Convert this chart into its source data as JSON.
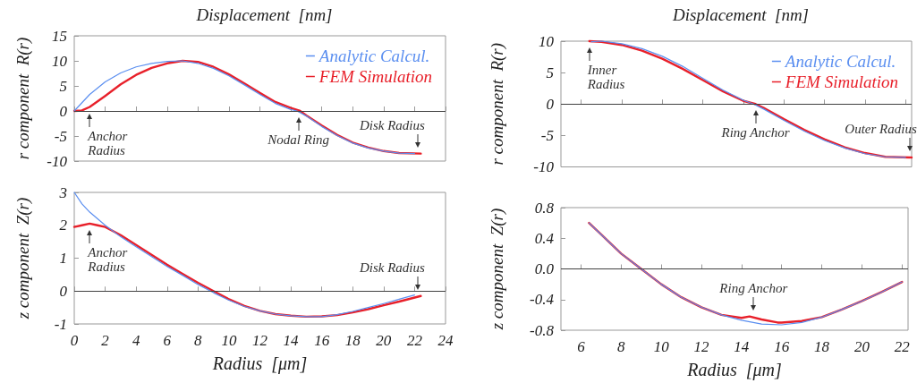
{
  "chart_data": [
    {
      "type": "line",
      "title": "Displacement  [nm]",
      "ylabel": "r component  R(r)",
      "xlim": [
        0,
        24
      ],
      "xticks": [
        0,
        2,
        4,
        6,
        8,
        10,
        12,
        14,
        16,
        18,
        20,
        22,
        24
      ],
      "ylim": [
        -10,
        15
      ],
      "yticks": [
        -10,
        -5,
        0,
        5,
        10,
        15
      ],
      "tick_labels": "y",
      "legend": "top right",
      "marker": "none",
      "line_style": "solid",
      "ref_lines": [
        {
          "axis": "y",
          "value": 0,
          "color": "#404040"
        }
      ],
      "annotations": [
        {
          "text": "Anchor Radius",
          "x": 1,
          "y": 0.8
        },
        {
          "text": "Nodal Ring",
          "x": 14.5,
          "y": 0
        },
        {
          "text": "Disk Radius",
          "x": 22.2,
          "y": -8.5
        }
      ],
      "series": [
        {
          "name": "Analytic Calcul.",
          "color": "#5b8ff0",
          "x": [
            0,
            1,
            2,
            3,
            4,
            5,
            6,
            7,
            8,
            9,
            10,
            11,
            12,
            13,
            14,
            14.4,
            15,
            16,
            17,
            18,
            19,
            20,
            21,
            22
          ],
          "values": [
            0,
            3.3,
            5.8,
            7.6,
            8.8,
            9.5,
            9.9,
            10,
            9.5,
            8.5,
            7,
            5.2,
            3.3,
            1.5,
            0.3,
            0,
            -1,
            -3.1,
            -4.9,
            -6.4,
            -7.4,
            -8,
            -8.4,
            -8.5
          ]
        },
        {
          "name": "FEM Simulation",
          "color": "#e8202a",
          "x": [
            0,
            0.5,
            1,
            2,
            3,
            4,
            5,
            6,
            7,
            8,
            9,
            10,
            11,
            12,
            13,
            14,
            14.6,
            15,
            16,
            17,
            18,
            19,
            20,
            21,
            22.4
          ],
          "values": [
            0,
            0.1,
            0.8,
            3,
            5.3,
            7.2,
            8.6,
            9.5,
            10,
            9.8,
            8.8,
            7.3,
            5.5,
            3.6,
            1.8,
            0.6,
            0,
            -0.9,
            -2.9,
            -4.8,
            -6.3,
            -7.3,
            -8,
            -8.4,
            -8.5
          ]
        }
      ]
    },
    {
      "type": "line",
      "title": "Displacement  [nm]",
      "ylabel": "r component  R(r)",
      "xlim": [
        5,
        22.3
      ],
      "xticks": [
        6,
        8,
        10,
        12,
        14,
        16,
        18,
        20,
        22
      ],
      "ylim": [
        -10,
        10
      ],
      "yticks": [
        -10,
        -5,
        0,
        5,
        10
      ],
      "tick_labels": "y",
      "legend": "top right",
      "marker": "none",
      "line_style": "solid",
      "ref_lines": [
        {
          "axis": "y",
          "value": 0,
          "color": "#404040"
        }
      ],
      "annotations": [
        {
          "text": "Inner Radius",
          "x": 6.4,
          "y": 10
        },
        {
          "text": "Ring Anchor",
          "x": 14.6,
          "y": 0
        },
        {
          "text": "Outer Radius",
          "x": 22.2,
          "y": -8.5
        }
      ],
      "series": [
        {
          "name": "Analytic Calcul.",
          "color": "#5b8ff0",
          "x": [
            6.5,
            7,
            8,
            9,
            10,
            11,
            12,
            13,
            14,
            14.5,
            15,
            16,
            17,
            18,
            19,
            20,
            21,
            22
          ],
          "values": [
            9.9,
            10,
            9.6,
            8.8,
            7.6,
            6,
            4.1,
            2.2,
            0.6,
            0,
            -0.8,
            -2.6,
            -4.3,
            -5.8,
            -7,
            -7.9,
            -8.4,
            -8.5
          ]
        },
        {
          "name": "FEM Simulation",
          "color": "#e8202a",
          "x": [
            6.4,
            7,
            8,
            9,
            10,
            11,
            12,
            13,
            14,
            14.6,
            15,
            16,
            17,
            18,
            19,
            20,
            21,
            22.3
          ],
          "values": [
            10,
            9.9,
            9.4,
            8.5,
            7.2,
            5.6,
            3.8,
            2,
            0.5,
            0,
            -0.6,
            -2.4,
            -4.1,
            -5.6,
            -6.9,
            -7.8,
            -8.4,
            -8.5
          ]
        }
      ]
    },
    {
      "type": "line",
      "xlabel": "Radius  [μm]",
      "ylabel": "z component  Z(r)",
      "xlim": [
        0,
        24
      ],
      "xticks": [
        0,
        2,
        4,
        6,
        8,
        10,
        12,
        14,
        16,
        18,
        20,
        22,
        24
      ],
      "ylim": [
        -1,
        3
      ],
      "yticks": [
        -1,
        0,
        1,
        2,
        3
      ],
      "marker": "none",
      "line_style": "solid",
      "ref_lines": [
        {
          "axis": "y",
          "value": 0,
          "color": "#404040"
        }
      ],
      "annotations": [
        {
          "text": "Anchor Radius",
          "x": 1,
          "y": 2.05
        },
        {
          "text": "Disk Radius",
          "x": 22.2,
          "y": -0.15
        }
      ],
      "series": [
        {
          "color": "#5b8ff0",
          "x": [
            0,
            0.5,
            1,
            2,
            3,
            4,
            5,
            6,
            7,
            8,
            9,
            10,
            11,
            12,
            13,
            14,
            15,
            16,
            17,
            18,
            19,
            20,
            21,
            22
          ],
          "values": [
            3,
            2.65,
            2.4,
            2,
            1.65,
            1.35,
            1.05,
            0.75,
            0.48,
            0.2,
            -0.05,
            -0.28,
            -0.47,
            -0.6,
            -0.7,
            -0.75,
            -0.78,
            -0.78,
            -0.72,
            -0.62,
            -0.5,
            -0.38,
            -0.25,
            -0.12
          ]
        },
        {
          "color": "#e8202a",
          "x": [
            0,
            0.5,
            1,
            1.5,
            2,
            3,
            4,
            5,
            6,
            7,
            8,
            9,
            10,
            11,
            12,
            13,
            14,
            15,
            16,
            17,
            18,
            19,
            20,
            21,
            22.4
          ],
          "values": [
            1.95,
            2,
            2.05,
            2,
            1.95,
            1.7,
            1.4,
            1.1,
            0.8,
            0.52,
            0.25,
            0,
            -0.25,
            -0.45,
            -0.6,
            -0.7,
            -0.75,
            -0.78,
            -0.77,
            -0.73,
            -0.65,
            -0.55,
            -0.43,
            -0.32,
            -0.15
          ]
        }
      ]
    },
    {
      "type": "line",
      "xlabel": "Radius  [μm]",
      "ylabel": "z component  Z(r)",
      "xlim": [
        5,
        22.3
      ],
      "xticks": [
        6,
        8,
        10,
        12,
        14,
        16,
        18,
        20,
        22
      ],
      "ylim": [
        -0.8,
        0.8
      ],
      "yticks": [
        -0.8,
        -0.4,
        {
          "value": 0,
          "label": "0.0"
        },
        0.4,
        0.8
      ],
      "marker": "none",
      "line_style": "solid",
      "ref_lines": [
        {
          "axis": "y",
          "value": 0,
          "color": "#404040"
        }
      ],
      "annotations": [
        {
          "text": "Ring Anchor",
          "x": 14.6,
          "y": -0.62
        }
      ],
      "series": [
        {
          "color": "#5b8ff0",
          "x": [
            6.4,
            7,
            8,
            9,
            10,
            11,
            12,
            13,
            14,
            15,
            16,
            17,
            18,
            19,
            20,
            21,
            22
          ],
          "values": [
            0.6,
            0.45,
            0.2,
            0,
            -0.2,
            -0.37,
            -0.5,
            -0.6,
            -0.67,
            -0.72,
            -0.73,
            -0.7,
            -0.63,
            -0.53,
            -0.42,
            -0.3,
            -0.17
          ]
        },
        {
          "color": "#e8202a",
          "x": [
            6.4,
            7,
            8,
            9,
            10,
            11,
            12,
            13,
            14,
            14.4,
            15,
            15.8,
            16,
            17,
            18,
            19,
            20,
            21,
            22
          ],
          "values": [
            0.6,
            0.45,
            0.2,
            0,
            -0.2,
            -0.37,
            -0.5,
            -0.6,
            -0.64,
            -0.62,
            -0.66,
            -0.7,
            -0.7,
            -0.68,
            -0.63,
            -0.53,
            -0.42,
            -0.3,
            -0.17
          ]
        }
      ]
    }
  ]
}
